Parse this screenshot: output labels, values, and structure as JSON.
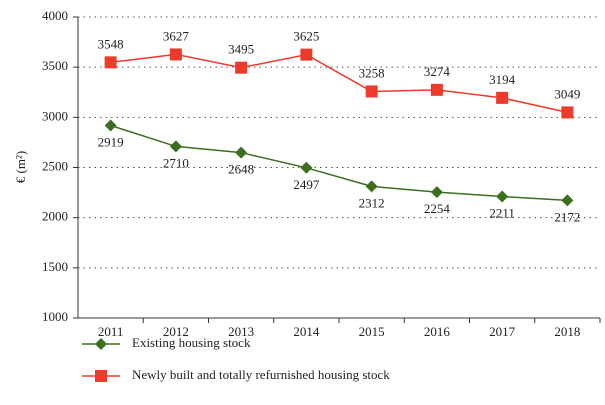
{
  "chart_data": {
    "type": "line",
    "y_label": "€ (m²)",
    "categories": [
      "2011",
      "2012",
      "2013",
      "2014",
      "2015",
      "2016",
      "2017",
      "2018"
    ],
    "series": [
      {
        "name": "Existing housing stock",
        "color": "#3b6e1f",
        "marker": "diamond",
        "values": [
          2919,
          2710,
          2648,
          2497,
          2312,
          2254,
          2211,
          2172
        ],
        "label_position": "below"
      },
      {
        "name": "Newly built and totally refurnished housing stock",
        "color": "#ee3a2b",
        "marker": "square",
        "values": [
          3548,
          3627,
          3495,
          3625,
          3258,
          3274,
          3194,
          3049
        ],
        "label_position": "above"
      }
    ],
    "ylim": [
      1000,
      4000
    ],
    "yticks": [
      1000,
      1500,
      2000,
      2500,
      3000,
      3500,
      4000
    ],
    "grid": true
  }
}
